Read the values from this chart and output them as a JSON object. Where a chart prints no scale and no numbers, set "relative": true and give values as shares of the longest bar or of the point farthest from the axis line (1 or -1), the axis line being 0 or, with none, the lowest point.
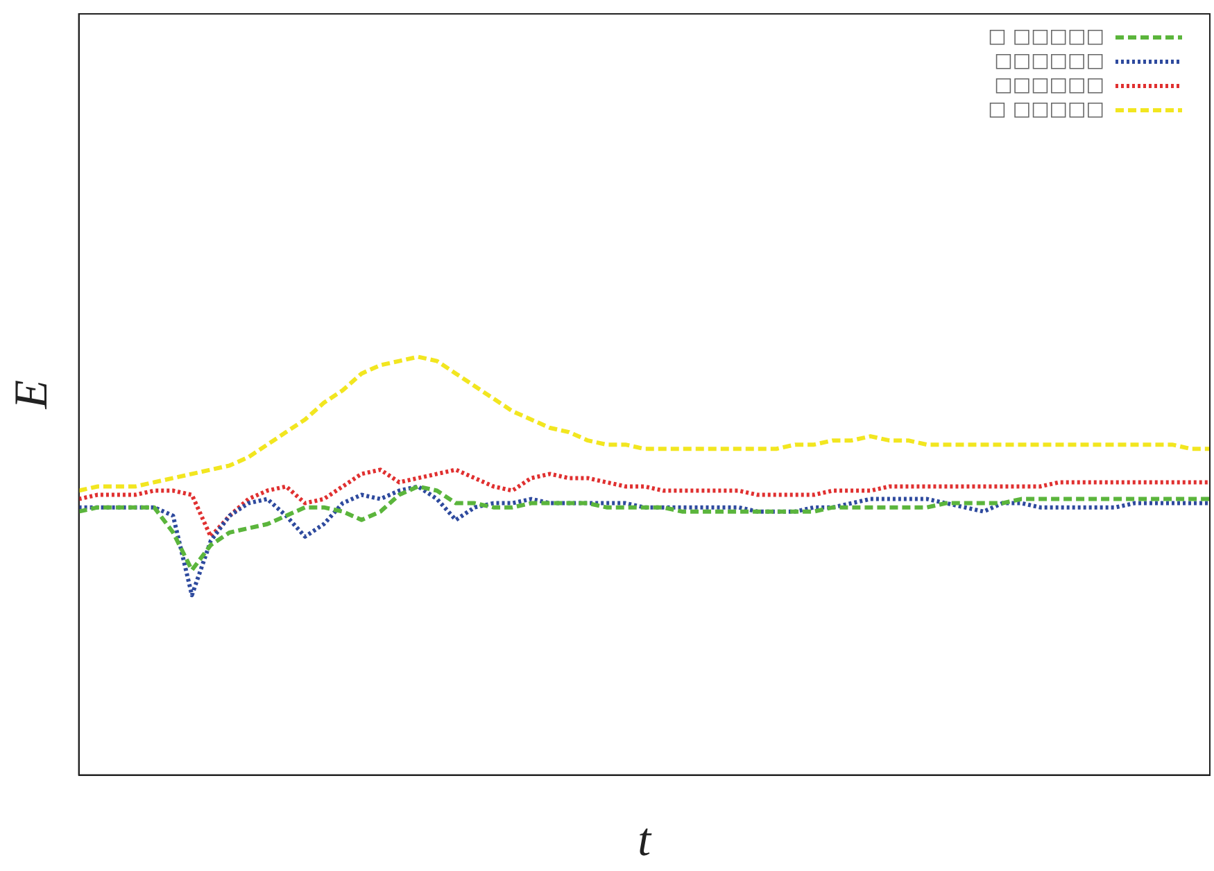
{
  "chart_data": {
    "type": "line",
    "relative": true,
    "xlabel": "t",
    "ylabel": "E",
    "legend": "top right",
    "marker": "none",
    "categories": [
      null,
      null,
      null,
      null,
      null,
      null,
      null,
      null,
      null,
      null,
      null,
      null,
      null,
      null,
      null,
      null,
      null,
      null,
      null,
      null,
      null,
      null,
      null,
      null,
      null,
      null,
      null,
      null,
      null,
      null,
      null,
      null,
      null,
      null,
      null,
      null,
      null,
      null,
      null,
      null,
      null,
      null,
      null,
      null,
      null,
      null,
      null,
      null,
      null,
      null,
      null,
      null,
      null,
      null,
      null,
      null,
      null,
      null,
      null,
      null,
      null
    ],
    "series": [
      {
        "name": "□ □□□□□",
        "color": "#5bb53c",
        "line_style": "dashed",
        "values": [
          0.63,
          0.64,
          0.64,
          0.64,
          0.64,
          0.58,
          0.49,
          0.55,
          0.58,
          0.59,
          0.6,
          0.62,
          0.64,
          0.64,
          0.63,
          0.61,
          0.63,
          0.67,
          0.69,
          0.68,
          0.65,
          0.65,
          0.64,
          0.64,
          0.65,
          0.65,
          0.65,
          0.65,
          0.64,
          0.64,
          0.64,
          0.64,
          0.63,
          0.63,
          0.63,
          0.63,
          0.63,
          0.63,
          0.63,
          0.63,
          0.64,
          0.64,
          0.64,
          0.64,
          0.64,
          0.64,
          0.65,
          0.65,
          0.65,
          0.65,
          0.66,
          0.66,
          0.66,
          0.66,
          0.66,
          0.66,
          0.66,
          0.66,
          0.66,
          0.66,
          0.66
        ]
      },
      {
        "name": "□□□□□□",
        "color": "#2e4a9e",
        "line_style": "dotted",
        "values": [
          0.64,
          0.64,
          0.64,
          0.64,
          0.64,
          0.62,
          0.43,
          0.56,
          0.62,
          0.65,
          0.66,
          0.62,
          0.57,
          0.6,
          0.65,
          0.67,
          0.66,
          0.68,
          0.69,
          0.66,
          0.61,
          0.64,
          0.65,
          0.65,
          0.66,
          0.65,
          0.65,
          0.65,
          0.65,
          0.65,
          0.64,
          0.64,
          0.64,
          0.64,
          0.64,
          0.64,
          0.63,
          0.63,
          0.63,
          0.64,
          0.64,
          0.65,
          0.66,
          0.66,
          0.66,
          0.66,
          0.65,
          0.64,
          0.63,
          0.65,
          0.65,
          0.64,
          0.64,
          0.64,
          0.64,
          0.64,
          0.65,
          0.65,
          0.65,
          0.65,
          0.65
        ]
      },
      {
        "name": "□□□□□□",
        "color": "#e03030",
        "line_style": "dotted",
        "values": [
          0.66,
          0.67,
          0.67,
          0.67,
          0.68,
          0.68,
          0.67,
          0.57,
          0.62,
          0.66,
          0.68,
          0.69,
          0.65,
          0.66,
          0.69,
          0.72,
          0.73,
          0.7,
          0.71,
          0.72,
          0.73,
          0.71,
          0.69,
          0.68,
          0.71,
          0.72,
          0.71,
          0.71,
          0.7,
          0.69,
          0.69,
          0.68,
          0.68,
          0.68,
          0.68,
          0.68,
          0.67,
          0.67,
          0.67,
          0.67,
          0.68,
          0.68,
          0.68,
          0.69,
          0.69,
          0.69,
          0.69,
          0.69,
          0.69,
          0.69,
          0.69,
          0.69,
          0.7,
          0.7,
          0.7,
          0.7,
          0.7,
          0.7,
          0.7,
          0.7,
          0.7
        ]
      },
      {
        "name": "□ □□□□□",
        "color": "#f2e620",
        "line_style": "dashed",
        "values": [
          0.68,
          0.69,
          0.69,
          0.69,
          0.7,
          0.71,
          0.72,
          0.73,
          0.74,
          0.76,
          0.79,
          0.82,
          0.85,
          0.89,
          0.92,
          0.96,
          0.98,
          0.99,
          1.0,
          0.99,
          0.96,
          0.93,
          0.9,
          0.87,
          0.85,
          0.83,
          0.82,
          0.8,
          0.79,
          0.79,
          0.78,
          0.78,
          0.78,
          0.78,
          0.78,
          0.78,
          0.78,
          0.78,
          0.79,
          0.79,
          0.8,
          0.8,
          0.81,
          0.8,
          0.8,
          0.79,
          0.79,
          0.79,
          0.79,
          0.79,
          0.79,
          0.79,
          0.79,
          0.79,
          0.79,
          0.79,
          0.79,
          0.79,
          0.79,
          0.78,
          0.78
        ]
      }
    ]
  }
}
